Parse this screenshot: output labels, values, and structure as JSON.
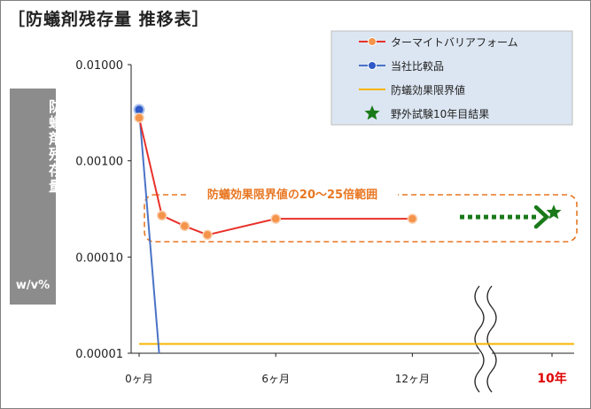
{
  "title": "［防蟻剤残存量 推移表］",
  "y_label": {
    "text": "防蟻剤残存量",
    "unit": "w/v%"
  },
  "colors": {
    "termite_barrier": "#e8312a",
    "termite_barrier_marker": "#f4944b",
    "competitor": "#4a73c6",
    "competitor_marker": "#2e59c6",
    "limit": "#f5b400",
    "field_test": "#1a7a1a",
    "range_box": "#e87722"
  },
  "range_annotation": "防蟻効果限界値の20〜25倍範囲",
  "chart_data": {
    "type": "line",
    "yscale": "log",
    "ylim": [
      1e-05,
      0.01
    ],
    "y_ticks": [
      "0.01000",
      "0.00100",
      "0.00010",
      "0.00001"
    ],
    "x_ticks": [
      "0ヶ月",
      "6ヶ月",
      "12ヶ月",
      "10年"
    ],
    "xlim_months": [
      0,
      18.5
    ],
    "grid": false,
    "legend_position": "top-right",
    "series": [
      {
        "name": "ターマイトバリアフォーム",
        "x": [
          0,
          1,
          2,
          3,
          6,
          12
        ],
        "y": [
          0.0028,
          0.00027,
          0.00021,
          0.00017,
          0.00025,
          0.00025
        ]
      },
      {
        "name": "当社比較品",
        "x": [
          0,
          0.88
        ],
        "y": [
          0.0034,
          1e-05
        ]
      },
      {
        "name": "防蟻効果限界値",
        "x": [
          0,
          18.5
        ],
        "y": [
          1.25e-05,
          1.25e-05
        ]
      },
      {
        "name": "野外試験10年目結果",
        "x_label": "10年",
        "y": 0.00029
      }
    ]
  }
}
